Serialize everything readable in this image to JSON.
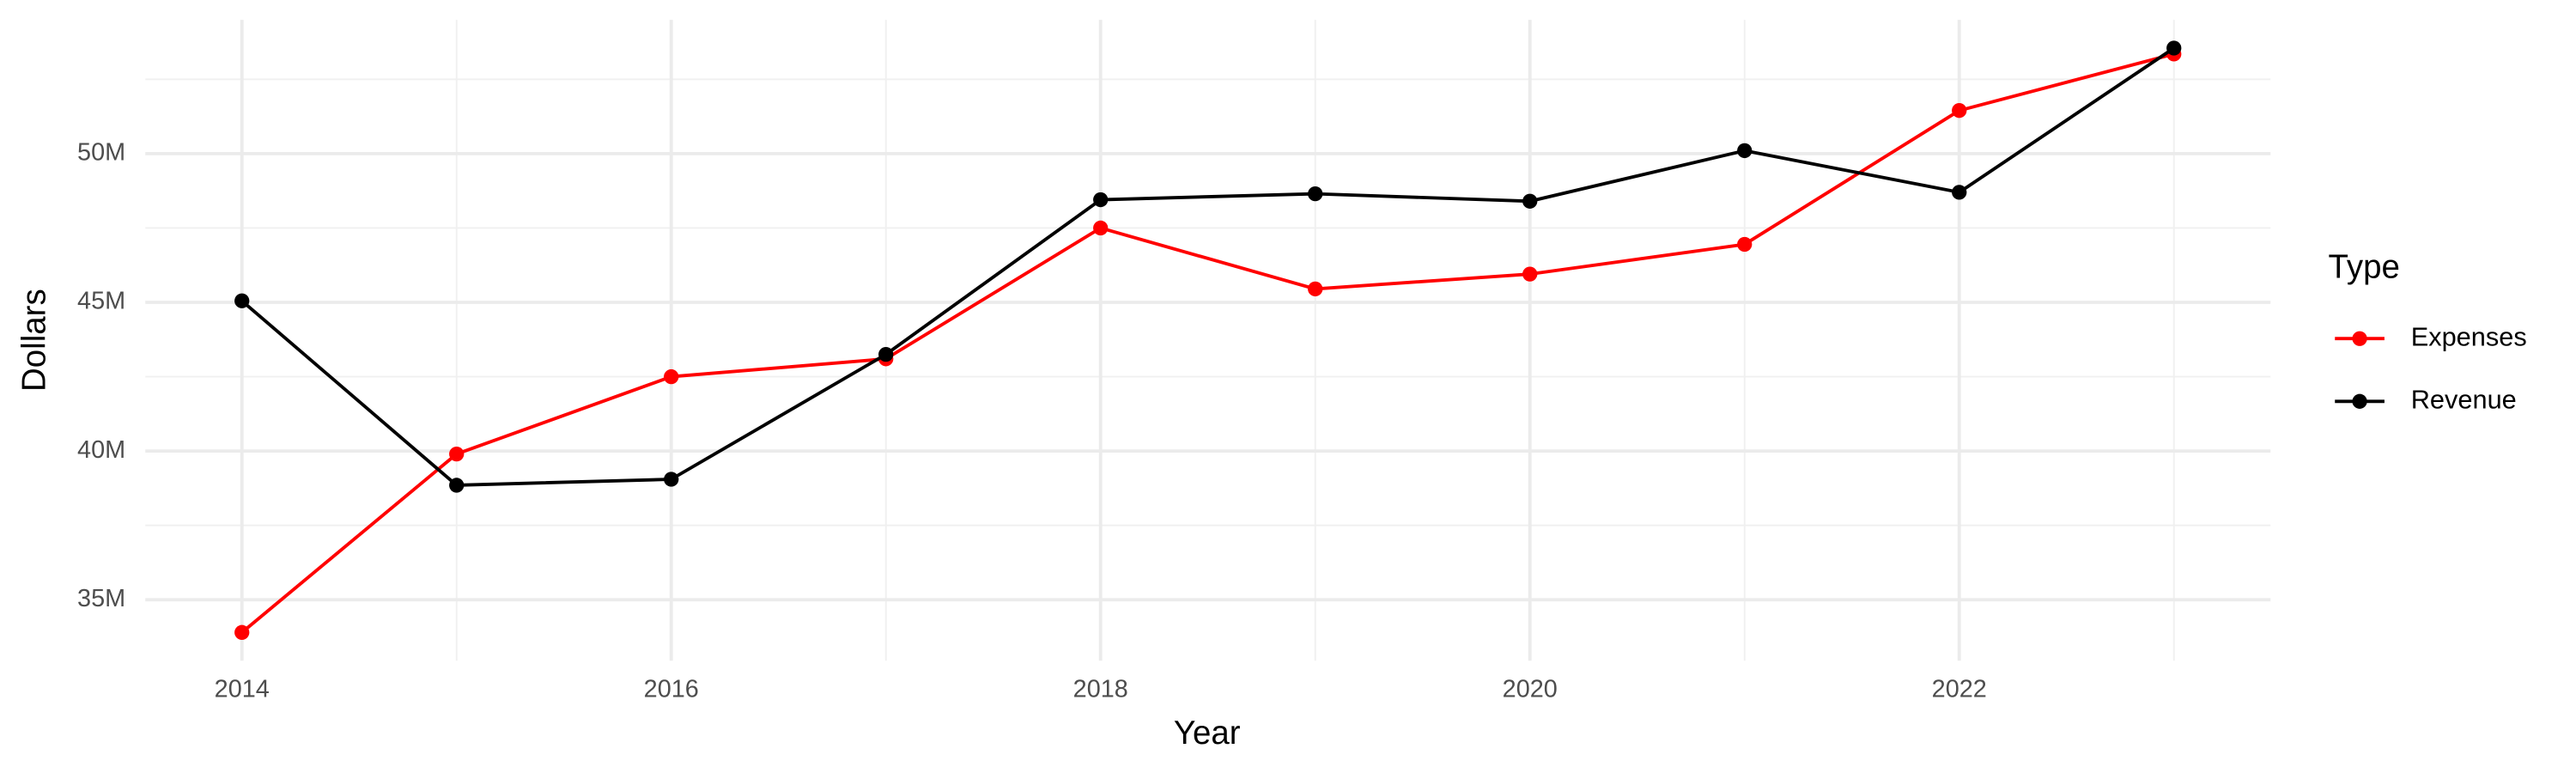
{
  "chart_data": {
    "type": "line",
    "x_label": "Year",
    "y_label": "Dollars",
    "legend_title": "Type",
    "x": [
      2014,
      2015,
      2016,
      2017,
      2018,
      2019,
      2020,
      2021,
      2022,
      2023
    ],
    "series": [
      {
        "name": "Expenses",
        "color": "#ff0000",
        "values": [
          33900000,
          39900000,
          42500000,
          43100000,
          47500000,
          45450000,
          45950000,
          46950000,
          51450000,
          53350000
        ]
      },
      {
        "name": "Revenue",
        "color": "#000000",
        "values": [
          45050000,
          38850000,
          39050000,
          43250000,
          48450000,
          48650000,
          48400000,
          50100000,
          48700000,
          53550000
        ]
      }
    ],
    "xlim": [
      2013.55,
      2023.45
    ],
    "xticks": [
      2014,
      2016,
      2018,
      2020,
      2022
    ],
    "ylim": [
      32950000,
      54500000
    ],
    "yticks": [
      {
        "value": 35000000,
        "label": "35M"
      },
      {
        "value": 40000000,
        "label": "40M"
      },
      {
        "value": 45000000,
        "label": "45M"
      },
      {
        "value": 50000000,
        "label": "50M"
      }
    ],
    "grid": true,
    "legend": "right"
  }
}
